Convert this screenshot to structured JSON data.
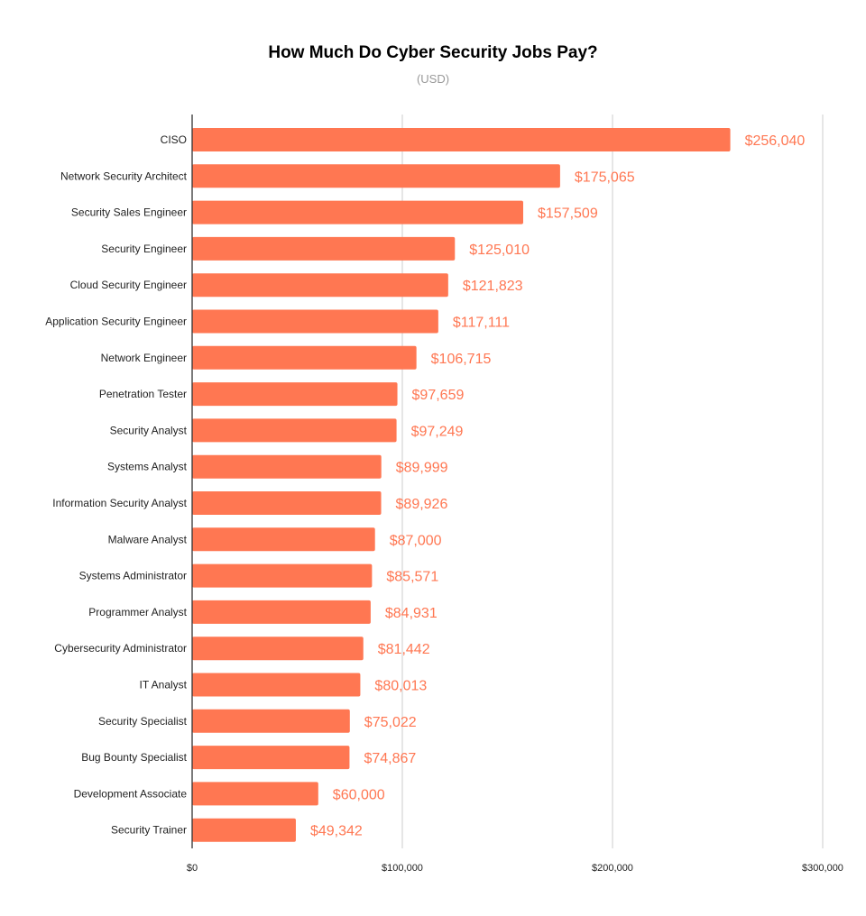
{
  "chart_data": {
    "type": "bar",
    "orientation": "horizontal",
    "title": "How Much Do Cyber Security Jobs Pay?",
    "subtitle": "(USD)",
    "xlabel": "",
    "ylabel": "",
    "xlim": [
      0,
      300000
    ],
    "x_ticks": [
      "$0",
      "$100,000",
      "$200,000",
      "$300,000"
    ],
    "x_tick_values": [
      0,
      100000,
      200000,
      300000
    ],
    "grid": true,
    "bar_color": "#ff7752",
    "categories": [
      "CISO",
      "Network Security Architect",
      "Security Sales Engineer",
      "Security Engineer",
      "Cloud Security Engineer",
      "Application Security Engineer",
      "Network Engineer",
      "Penetration Tester",
      "Security Analyst",
      "Systems Analyst",
      "Information Security Analyst",
      "Malware Analyst",
      "Systems Administrator",
      "Programmer Analyst",
      "Cybersecurity Administrator",
      "IT Analyst",
      "Security Specialist",
      "Bug Bounty Specialist",
      "Development Associate",
      "Security Trainer"
    ],
    "values": [
      256040,
      175065,
      157509,
      125010,
      121823,
      117111,
      106715,
      97659,
      97249,
      89999,
      89926,
      87000,
      85571,
      84931,
      81442,
      80013,
      75022,
      74867,
      60000,
      49342
    ],
    "data_labels": [
      "$256,040",
      "$175,065",
      "$157,509",
      "$125,010",
      "$121,823",
      "$117,111",
      "$106,715",
      "$97,659",
      "$97,249",
      "$89,999",
      "$89,926",
      "$87,000",
      "$85,571",
      "$84,931",
      "$81,442",
      "$80,013",
      "$75,022",
      "$74,867",
      "$60,000",
      "$49,342"
    ]
  }
}
